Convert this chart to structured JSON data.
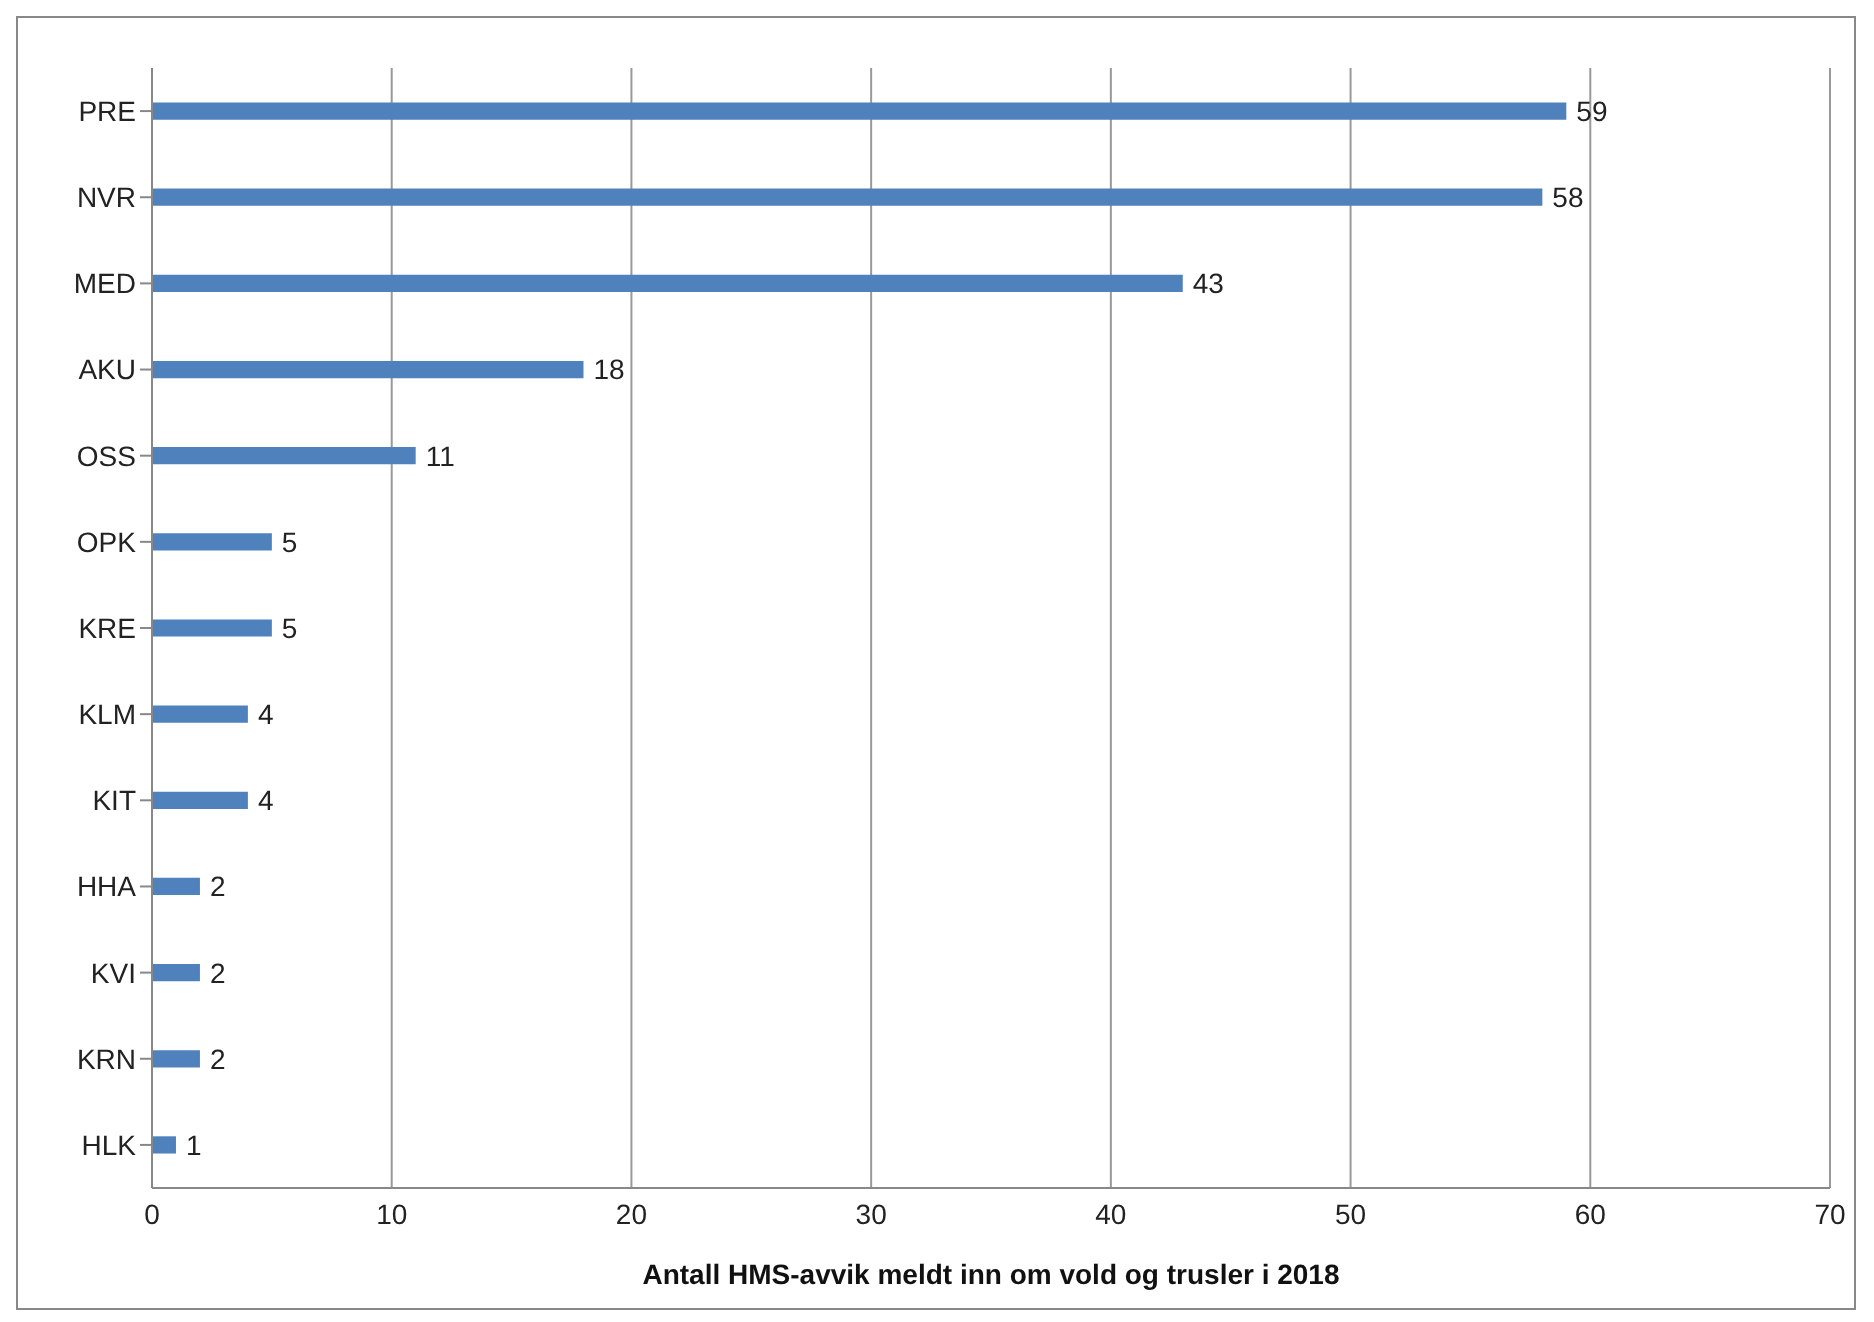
{
  "chart_data": {
    "type": "bar",
    "orientation": "horizontal",
    "xlabel": "Antall HMS-avvik meldt inn om vold og trusler i 2018",
    "categories": [
      "PRE",
      "NVR",
      "MED",
      "AKU",
      "OSS",
      "OPK",
      "KRE",
      "KLM",
      "KIT",
      "HHA",
      "KVI",
      "KRN",
      "HLK"
    ],
    "values": [
      59,
      58,
      43,
      18,
      11,
      5,
      5,
      4,
      4,
      2,
      2,
      2,
      1
    ],
    "color": "#4f81bd",
    "xlim": [
      0,
      70
    ],
    "xticks": [
      0,
      10,
      20,
      30,
      40,
      50,
      60,
      70
    ],
    "grid": "x",
    "data_labels": true
  }
}
